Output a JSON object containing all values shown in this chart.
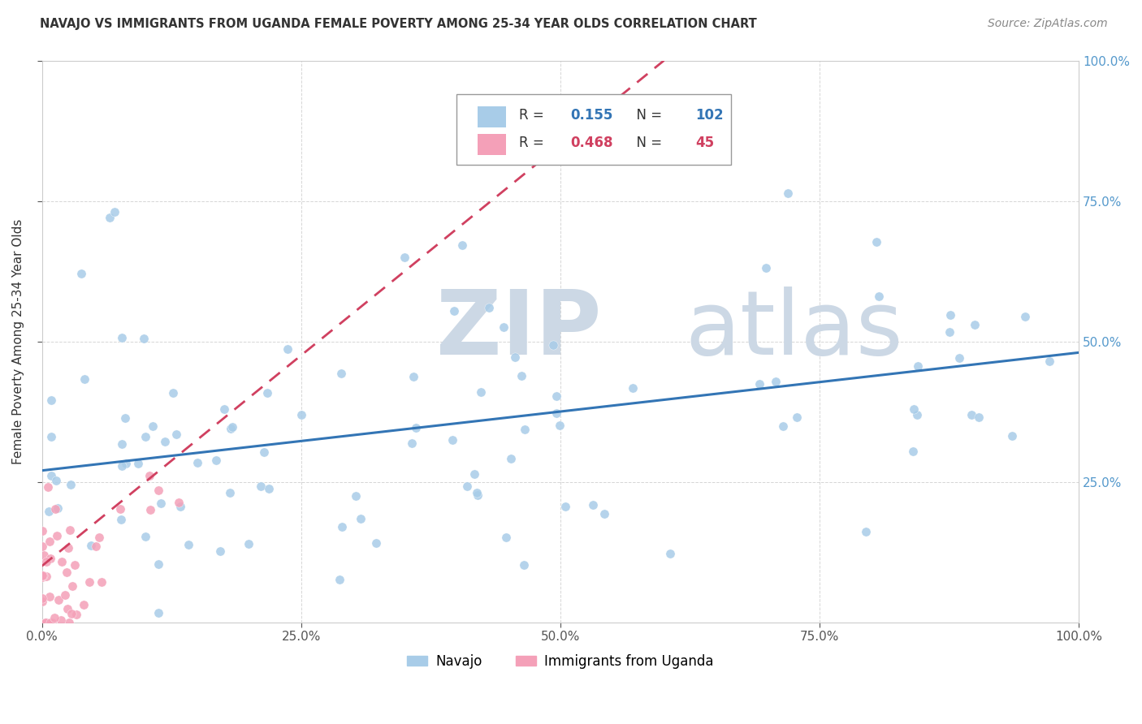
{
  "title": "NAVAJO VS IMMIGRANTS FROM UGANDA FEMALE POVERTY AMONG 25-34 YEAR OLDS CORRELATION CHART",
  "source": "Source: ZipAtlas.com",
  "ylabel": "Female Poverty Among 25-34 Year Olds",
  "navajo_R": 0.155,
  "navajo_N": 102,
  "uganda_R": 0.468,
  "uganda_N": 45,
  "navajo_color": "#a8cce8",
  "uganda_color": "#f4a0b8",
  "navajo_line_color": "#3375b5",
  "uganda_line_color": "#d04060",
  "watermark_ZIP": "ZIP",
  "watermark_atlas": "atlas",
  "watermark_color": "#ccd8e5",
  "background_color": "#ffffff",
  "grid_color": "#cccccc",
  "right_tick_color": "#5599cc",
  "title_color": "#333333",
  "source_color": "#888888"
}
